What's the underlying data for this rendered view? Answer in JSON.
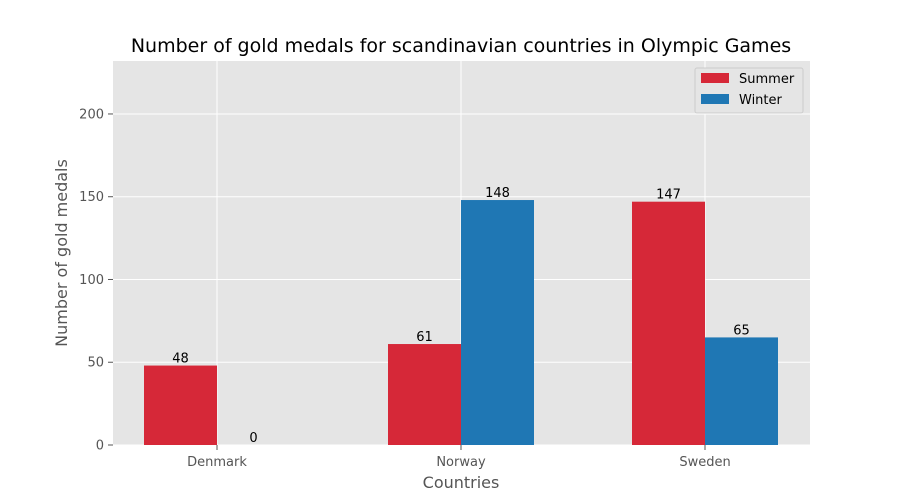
{
  "chart_data": {
    "type": "bar",
    "title": "Number of gold medals for scandinavian countries in Olympic Games",
    "xlabel": "Countries",
    "ylabel": "Number of gold medals",
    "categories": [
      "Denmark",
      "Norway",
      "Sweden"
    ],
    "series": [
      {
        "name": "Summer",
        "values": [
          48,
          61,
          147
        ],
        "color": "#d62838"
      },
      {
        "name": "Winter",
        "values": [
          0,
          148,
          65
        ],
        "color": "#1f77b4"
      }
    ],
    "ylim": [
      0,
      232
    ],
    "yticks": [
      0,
      50,
      100,
      150,
      200
    ],
    "grid": true,
    "legend_position": "top-right",
    "background": "#e5e5e5"
  }
}
